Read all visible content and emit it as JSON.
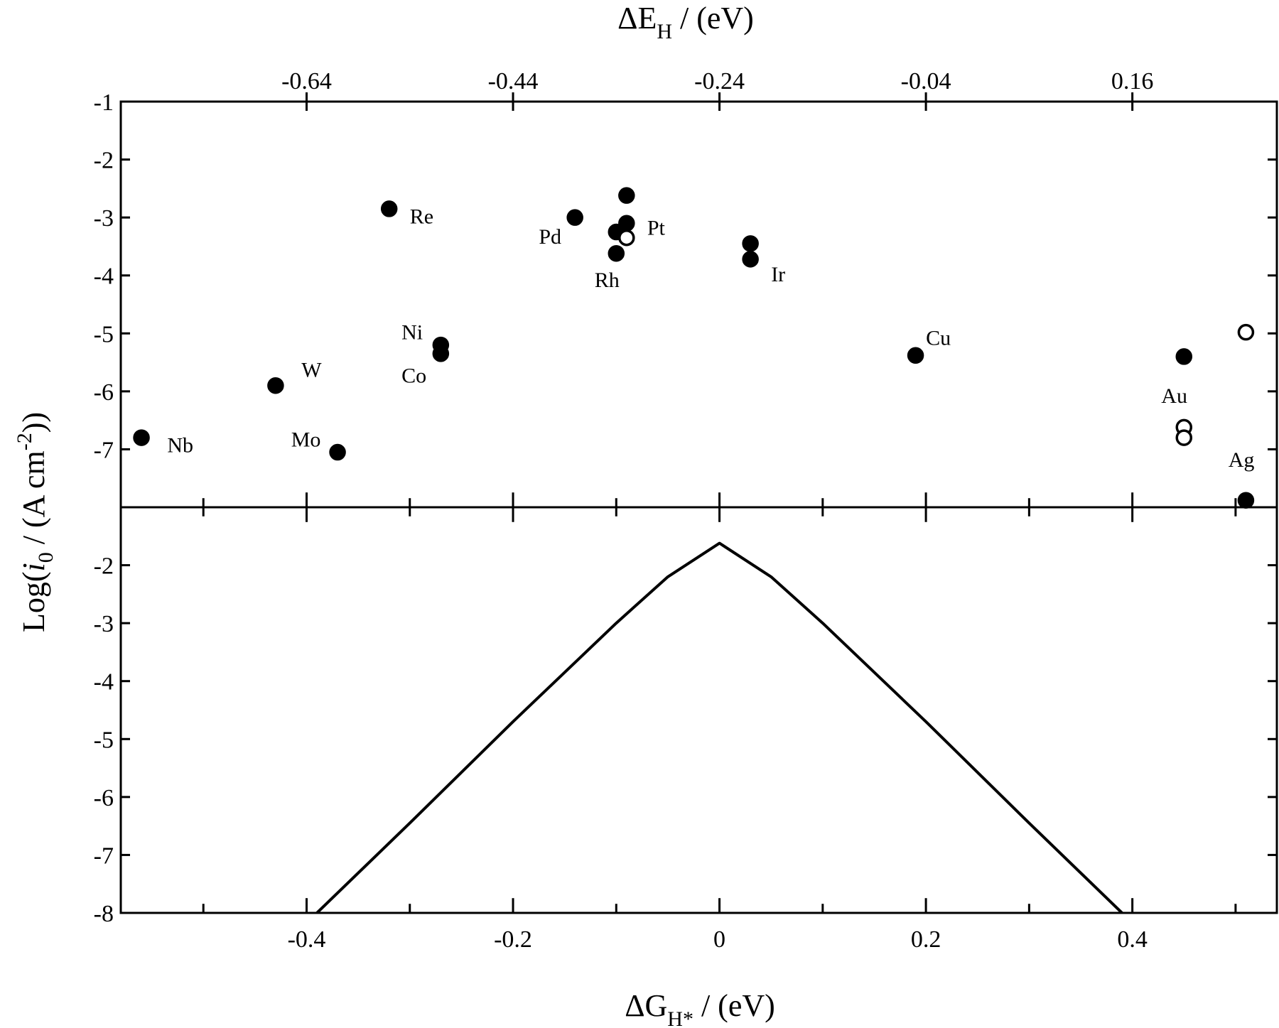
{
  "chart_data": {
    "type": "scatter",
    "panels": [
      {
        "name": "top",
        "xlim": [
          -0.58,
          0.54
        ],
        "ylim": [
          -8,
          -1
        ],
        "yticks": [
          -7,
          -6,
          -5,
          -4,
          -3,
          -2,
          -1
        ],
        "ytick_labels": [
          "-7",
          "-6",
          "-5",
          "-4",
          "-3",
          "-2",
          "-1"
        ],
        "top_axis": {
          "ticks": [
            -0.64,
            -0.44,
            -0.24,
            -0.04,
            0.16
          ],
          "tick_labels": [
            "-0.64",
            "-0.44",
            "-0.24",
            "-0.04",
            "0.16"
          ],
          "offset": -0.24
        },
        "points": [
          {
            "x": -0.56,
            "y": -6.8,
            "filled": true
          },
          {
            "x": -0.43,
            "y": -5.9,
            "filled": true
          },
          {
            "x": -0.37,
            "y": -7.05,
            "filled": true
          },
          {
            "x": -0.32,
            "y": -2.85,
            "filled": true
          },
          {
            "x": -0.27,
            "y": -5.2,
            "filled": true
          },
          {
            "x": -0.27,
            "y": -5.35,
            "filled": true
          },
          {
            "x": -0.14,
            "y": -3.0,
            "filled": true
          },
          {
            "x": -0.09,
            "y": -2.62,
            "filled": true
          },
          {
            "x": -0.09,
            "y": -3.1,
            "filled": true
          },
          {
            "x": -0.1,
            "y": -3.25,
            "filled": true
          },
          {
            "x": -0.09,
            "y": -3.35,
            "filled": false
          },
          {
            "x": -0.1,
            "y": -3.62,
            "filled": true
          },
          {
            "x": 0.03,
            "y": -3.45,
            "filled": true
          },
          {
            "x": 0.03,
            "y": -3.72,
            "filled": true
          },
          {
            "x": 0.19,
            "y": -5.38,
            "filled": true
          },
          {
            "x": 0.45,
            "y": -5.4,
            "filled": true
          },
          {
            "x": 0.45,
            "y": -6.62,
            "filled": false
          },
          {
            "x": 0.45,
            "y": -6.8,
            "filled": false
          },
          {
            "x": 0.51,
            "y": -4.98,
            "filled": false
          },
          {
            "x": 0.51,
            "y": -7.88,
            "filled": true
          }
        ],
        "labels": [
          {
            "text": "Nb",
            "x": -0.535,
            "y": -7.05
          },
          {
            "text": "W",
            "x": -0.405,
            "y": -5.75
          },
          {
            "text": "Mo",
            "x": -0.415,
            "y": -6.95
          },
          {
            "text": "Re",
            "x": -0.3,
            "y": -3.1
          },
          {
            "text": "Ni",
            "x": -0.308,
            "y": -5.1
          },
          {
            "text": "Co",
            "x": -0.308,
            "y": -5.85
          },
          {
            "text": "Pd",
            "x": -0.175,
            "y": -3.45
          },
          {
            "text": "Pt",
            "x": -0.07,
            "y": -3.3
          },
          {
            "text": "Rh",
            "x": -0.121,
            "y": -4.2
          },
          {
            "text": "Ir",
            "x": 0.05,
            "y": -4.1
          },
          {
            "text": "Cu",
            "x": 0.2,
            "y": -5.2
          },
          {
            "text": "Au",
            "x": 0.428,
            "y": -6.2
          },
          {
            "text": "Ag",
            "x": 0.493,
            "y": -7.3
          }
        ]
      },
      {
        "name": "bottom",
        "xlim": [
          -0.58,
          0.54
        ],
        "ylim": [
          -8,
          -1
        ],
        "yticks": [
          -8,
          -7,
          -6,
          -5,
          -4,
          -3,
          -2
        ],
        "ytick_labels": [
          "-8",
          "-7",
          "-6",
          "-5",
          "-4",
          "-3",
          "-2"
        ],
        "xticks": [
          -0.4,
          -0.2,
          0,
          0.2,
          0.4
        ],
        "xtick_labels": [
          "-0.4",
          "-0.2",
          "0",
          "0.2",
          "0.4"
        ],
        "line": {
          "x": [
            -0.39,
            -0.3,
            -0.2,
            -0.1,
            -0.05,
            0,
            0.05,
            0.1,
            0.2,
            0.3,
            0.39
          ],
          "y": [
            -8,
            -6.45,
            -4.7,
            -3.0,
            -2.2,
            -1.62,
            -2.2,
            -3.0,
            -4.7,
            -6.45,
            -8
          ]
        }
      }
    ],
    "xlabel_bottom": {
      "main": "ΔG",
      "sub": "H*",
      "unit": " / (eV)"
    },
    "xlabel_top": {
      "main": "ΔE",
      "sub": "H",
      "unit": " / (eV)"
    },
    "ylabel": {
      "pre": "Log(",
      "ital": "i",
      "sub": "0",
      "mid": " / (A cm",
      "sup": "-2",
      "post": "))"
    },
    "grid": false
  }
}
